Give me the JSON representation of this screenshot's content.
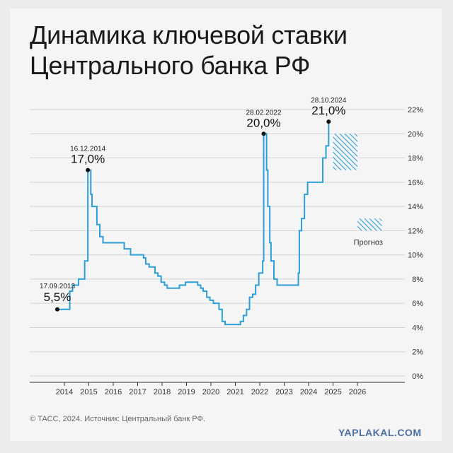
{
  "header": {
    "title_line1": "Динамика ключевой ставки",
    "title_line2": "Центрального банка РФ"
  },
  "footer": {
    "source": "© ТАСС, 2024. Источник: Центральный банк РФ."
  },
  "watermark": "YAPLAKAL.COM",
  "chart_data": {
    "type": "line",
    "title": "Динамика ключевой ставки Центрального банка РФ",
    "xlabel": "",
    "ylabel": "",
    "xlim": [
      2013.0,
      2027.3
    ],
    "ylim": [
      0,
      22
    ],
    "x_ticks": [
      "2014",
      "2015",
      "2016",
      "2017",
      "2018",
      "2019",
      "2020",
      "2021",
      "2022",
      "2023",
      "2024",
      "2025",
      "2026"
    ],
    "y_ticks": [
      "0%",
      "2%",
      "4%",
      "6%",
      "8%",
      "10%",
      "12%",
      "14%",
      "16%",
      "18%",
      "20%",
      "22%"
    ],
    "grid": "horizontal",
    "line_color": "#2d9fd8",
    "series": [
      {
        "step": true,
        "points": [
          [
            2013.71,
            5.5
          ],
          [
            2014.22,
            7.0
          ],
          [
            2014.33,
            7.5
          ],
          [
            2014.58,
            8.0
          ],
          [
            2014.83,
            9.5
          ],
          [
            2014.96,
            17.0
          ],
          [
            2015.08,
            15.0
          ],
          [
            2015.13,
            14.0
          ],
          [
            2015.33,
            12.5
          ],
          [
            2015.45,
            11.5
          ],
          [
            2015.58,
            11.0
          ],
          [
            2016.45,
            10.5
          ],
          [
            2016.71,
            10.0
          ],
          [
            2017.24,
            9.75
          ],
          [
            2017.33,
            9.25
          ],
          [
            2017.47,
            9.0
          ],
          [
            2017.71,
            8.5
          ],
          [
            2017.83,
            8.25
          ],
          [
            2017.96,
            7.75
          ],
          [
            2018.1,
            7.5
          ],
          [
            2018.21,
            7.25
          ],
          [
            2018.71,
            7.5
          ],
          [
            2018.96,
            7.75
          ],
          [
            2019.46,
            7.5
          ],
          [
            2019.58,
            7.25
          ],
          [
            2019.68,
            7.0
          ],
          [
            2019.83,
            6.5
          ],
          [
            2019.96,
            6.25
          ],
          [
            2020.1,
            6.0
          ],
          [
            2020.33,
            5.5
          ],
          [
            2020.46,
            4.5
          ],
          [
            2020.58,
            4.25
          ],
          [
            2021.21,
            4.5
          ],
          [
            2021.33,
            5.0
          ],
          [
            2021.46,
            5.5
          ],
          [
            2021.58,
            6.5
          ],
          [
            2021.71,
            6.75
          ],
          [
            2021.83,
            7.5
          ],
          [
            2021.96,
            8.5
          ],
          [
            2022.12,
            9.5
          ],
          [
            2022.16,
            20.0
          ],
          [
            2022.28,
            17.0
          ],
          [
            2022.33,
            14.0
          ],
          [
            2022.41,
            11.0
          ],
          [
            2022.46,
            9.5
          ],
          [
            2022.58,
            8.0
          ],
          [
            2022.71,
            7.5
          ],
          [
            2023.58,
            8.5
          ],
          [
            2023.62,
            12.0
          ],
          [
            2023.71,
            13.0
          ],
          [
            2023.83,
            15.0
          ],
          [
            2023.96,
            16.0
          ],
          [
            2024.58,
            18.0
          ],
          [
            2024.71,
            19.0
          ],
          [
            2024.82,
            21.0
          ],
          [
            2024.87,
            21.0
          ]
        ]
      }
    ],
    "annotations": [
      {
        "date": "17.09.2013",
        "value": "5,5%",
        "x": 2013.71,
        "y": 5.5
      },
      {
        "date": "16.12.2014",
        "value": "17,0%",
        "x": 2014.96,
        "y": 17.0
      },
      {
        "date": "28.02.2022",
        "value": "20,0%",
        "x": 2022.16,
        "y": 20.0
      },
      {
        "date": "28.10.2024",
        "value": "21,0%",
        "x": 2024.82,
        "y": 21.0
      }
    ],
    "forecast": {
      "label": "Прогноз",
      "hatch_color": "#2d9fd8",
      "ranges": [
        {
          "x": [
            2025.0,
            2026.0
          ],
          "y": [
            17.0,
            20.0
          ]
        },
        {
          "x": [
            2026.0,
            2027.0
          ],
          "y": [
            12.0,
            13.0
          ]
        }
      ]
    }
  }
}
